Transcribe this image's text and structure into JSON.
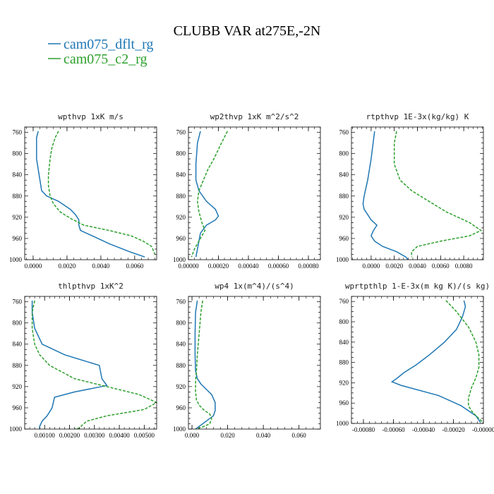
{
  "header": {
    "title": "CLUBB VAR at275E,-2N"
  },
  "colors": {
    "cam075_dflt_rg": "#1f77b4",
    "cam075_c2_rg": "#2ca02c"
  },
  "legend": [
    {
      "name": "cam075_dflt_rg",
      "color": "#1f77b4",
      "style": "solid"
    },
    {
      "name": "cam075_c2_rg",
      "color": "#2ca02c",
      "style": "dashed"
    }
  ],
  "chart_data": [
    {
      "type": "line",
      "title": "wpthvp  1xK m/s",
      "ylim": [
        750,
        1000
      ],
      "y_inverted": true,
      "yticks": [
        760,
        800,
        840,
        880,
        920,
        960,
        1000
      ],
      "xlim": [
        -0.0005,
        0.0073
      ],
      "xticks": [
        0.0,
        0.002,
        0.004,
        0.006
      ],
      "xticklabels": [
        "0.0000",
        "0.0020",
        "0.0040",
        "0.0060"
      ],
      "series": [
        {
          "name": "cam075_dflt_rg",
          "x": [
            0.0003,
            0.0002,
            0.0002,
            0.0002,
            0.0004,
            0.0005,
            0.0008,
            0.0015,
            0.0022,
            0.0025,
            0.0027,
            0.0027,
            0.0028,
            0.0035,
            0.0045,
            0.0057,
            0.0066
          ],
          "y": [
            758,
            770,
            790,
            810,
            850,
            870,
            880,
            890,
            905,
            915,
            925,
            935,
            945,
            955,
            970,
            985,
            995
          ]
        },
        {
          "name": "cam075_c2_rg",
          "x": [
            0.0015,
            0.0013,
            0.0011,
            0.001,
            0.0009,
            0.0009,
            0.001,
            0.0012,
            0.0016,
            0.0022,
            0.003,
            0.0045,
            0.0058,
            0.0065,
            0.007,
            0.0072
          ],
          "y": [
            758,
            770,
            790,
            810,
            840,
            860,
            880,
            895,
            910,
            922,
            935,
            945,
            955,
            965,
            975,
            990
          ]
        }
      ]
    },
    {
      "type": "line",
      "title": "wp2thvp  1xK m^2/s^2",
      "ylim": [
        750,
        1000
      ],
      "y_inverted": true,
      "yticks": [
        760,
        800,
        840,
        880,
        920,
        960,
        1000
      ],
      "xlim": [
        0,
        0.00088
      ],
      "xticks": [
        0,
        0.0002,
        0.0004,
        0.0006,
        0.0008
      ],
      "xticklabels": [
        "0.00000",
        "0.00020",
        "0.00040",
        "0.00060",
        "0.00080"
      ],
      "series": [
        {
          "name": "cam075_dflt_rg",
          "x": [
            8e-05,
            6e-05,
            5e-05,
            5e-05,
            7e-05,
            0.00012,
            0.00018,
            0.0002,
            0.00018,
            0.00012,
            8e-05,
            6e-05,
            5e-05
          ],
          "y": [
            758,
            780,
            820,
            850,
            870,
            890,
            905,
            918,
            925,
            935,
            950,
            980,
            995
          ]
        },
        {
          "name": "cam075_c2_rg",
          "x": [
            0.00026,
            0.00022,
            0.00017,
            0.00013,
            0.0001,
            7e-05,
            6e-05,
            7e-05,
            9e-05,
            0.00011,
            8e-05,
            4e-05,
            2e-05
          ],
          "y": [
            758,
            780,
            810,
            830,
            850,
            870,
            890,
            910,
            930,
            945,
            960,
            980,
            995
          ]
        }
      ]
    },
    {
      "type": "line",
      "title": "rtpthvp  1E-3x(kg/kg) K",
      "ylim": [
        750,
        1000
      ],
      "y_inverted": true,
      "yticks": [
        760,
        800,
        840,
        880,
        920,
        960,
        1000
      ],
      "xlim": [
        -0.0017,
        0.0097
      ],
      "xticks": [
        0.0,
        0.002,
        0.004,
        0.006,
        0.008
      ],
      "xticklabels": [
        "0.0000",
        "0.0020",
        "0.0040",
        "0.0060",
        "0.0080"
      ],
      "series": [
        {
          "name": "cam075_dflt_rg",
          "x": [
            0.0003,
            0.0002,
            0.0,
            -0.0003,
            -0.0006,
            -0.0007,
            -0.0006,
            -0.0003,
            0.0,
            0.0005,
            0.0002,
            0.0,
            0.0003,
            0.001,
            0.0022,
            0.003,
            0.0032
          ],
          "y": [
            758,
            775,
            810,
            850,
            880,
            895,
            905,
            915,
            925,
            935,
            945,
            955,
            965,
            975,
            985,
            995,
            1000
          ]
        },
        {
          "name": "cam075_c2_rg",
          "x": [
            0.0022,
            0.002,
            0.002,
            0.0025,
            0.0035,
            0.005,
            0.0065,
            0.0085,
            0.0095,
            0.0085,
            0.006,
            0.004,
            0.0035,
            0.0035
          ],
          "y": [
            758,
            780,
            820,
            850,
            870,
            890,
            910,
            930,
            945,
            955,
            965,
            975,
            985,
            995
          ]
        }
      ]
    },
    {
      "type": "line",
      "title": "thlpthvp  1xK^2",
      "ylim": [
        750,
        1000
      ],
      "y_inverted": true,
      "yticks": [
        760,
        800,
        840,
        880,
        920,
        960,
        1000
      ],
      "xlim": [
        0.0002,
        0.0055
      ],
      "xticks": [
        0.001,
        0.002,
        0.003,
        0.004,
        0.005
      ],
      "xticklabels": [
        "0.00100",
        "0.00200",
        "0.00300",
        "0.00400",
        "0.00500"
      ],
      "series": [
        {
          "name": "cam075_dflt_rg",
          "x": [
            0.0005,
            0.0005,
            0.0006,
            0.0009,
            0.0018,
            0.0032,
            0.0033,
            0.0035,
            0.0022,
            0.0014,
            0.0013,
            0.0011,
            0.0009,
            0.0008,
            0.0008
          ],
          "y": [
            758,
            780,
            810,
            840,
            860,
            880,
            905,
            918,
            930,
            940,
            960,
            975,
            985,
            995,
            1000
          ]
        },
        {
          "name": "cam075_c2_rg",
          "x": [
            0.0006,
            0.0005,
            0.0005,
            0.0006,
            0.0008,
            0.0012,
            0.0022,
            0.0035,
            0.0048,
            0.0055,
            0.005,
            0.0035,
            0.0027,
            0.0025,
            0.0024,
            0.0022
          ],
          "y": [
            758,
            780,
            810,
            840,
            860,
            880,
            905,
            920,
            935,
            950,
            963,
            975,
            985,
            993,
            998,
            1000
          ]
        }
      ]
    },
    {
      "type": "line",
      "title": "wp4  1x(m^4)/(s^4)",
      "ylim": [
        750,
        1000
      ],
      "y_inverted": true,
      "yticks": [
        760,
        800,
        840,
        880,
        920,
        960,
        1000
      ],
      "xlim": [
        -0.002,
        0.072
      ],
      "xticks": [
        0.0,
        0.02,
        0.04,
        0.06
      ],
      "xticklabels": [
        "0.000",
        "0.020",
        "0.040",
        "0.060"
      ],
      "series": [
        {
          "name": "cam075_dflt_rg",
          "x": [
            0.003,
            0.002,
            0.0017,
            0.0017,
            0.002,
            0.003,
            0.005,
            0.008,
            0.011,
            0.013,
            0.013,
            0.012,
            0.008,
            0.004,
            0.002
          ],
          "y": [
            758,
            780,
            820,
            860,
            890,
            905,
            915,
            925,
            935,
            950,
            965,
            975,
            985,
            995,
            1000
          ]
        },
        {
          "name": "cam075_c2_rg",
          "x": [
            0.006,
            0.005,
            0.004,
            0.003,
            0.0025,
            0.002,
            0.002,
            0.0025,
            0.004,
            0.007,
            0.01,
            0.011,
            0.01,
            0.006,
            0.002
          ],
          "y": [
            758,
            780,
            820,
            860,
            890,
            910,
            930,
            945,
            955,
            965,
            972,
            980,
            990,
            996,
            1000
          ]
        }
      ]
    },
    {
      "type": "line",
      "title": "wprtpthlp  1-E-3x(m kg K)/(s kg)",
      "ylim": [
        750,
        1000
      ],
      "y_inverted": true,
      "yticks": [
        760,
        800,
        840,
        880,
        920,
        960,
        1000
      ],
      "xlim": [
        -0.00088,
        0.0
      ],
      "xticks": [
        -0.0008,
        -0.0006,
        -0.0004,
        -0.0002,
        0.0
      ],
      "xticklabels": [
        "-0.00080",
        "-0.00060",
        "-0.00040",
        "-0.00020",
        "-0.00000"
      ],
      "series": [
        {
          "name": "cam075_dflt_rg",
          "x": [
            -0.00013,
            -0.00012,
            -0.00014,
            -0.00018,
            -0.00026,
            -0.00036,
            -0.00045,
            -0.00053,
            -0.00058,
            -0.00061,
            -0.00055,
            -0.0003,
            -0.00015,
            -5e-05,
            -2e-05
          ],
          "y": [
            758,
            770,
            790,
            815,
            840,
            865,
            885,
            900,
            912,
            918,
            925,
            945,
            965,
            985,
            998
          ]
        },
        {
          "name": "cam075_c2_rg",
          "x": [
            -0.00025,
            -0.00018,
            -0.0001,
            -5e-05,
            -3e-05,
            -3e-05,
            -5e-05,
            -8e-05,
            -0.0001,
            -0.0001,
            -8e-05,
            -5e-05,
            -2e-05,
            0.0
          ],
          "y": [
            758,
            780,
            810,
            840,
            865,
            890,
            910,
            930,
            950,
            965,
            975,
            985,
            993,
            1000
          ]
        }
      ]
    }
  ]
}
